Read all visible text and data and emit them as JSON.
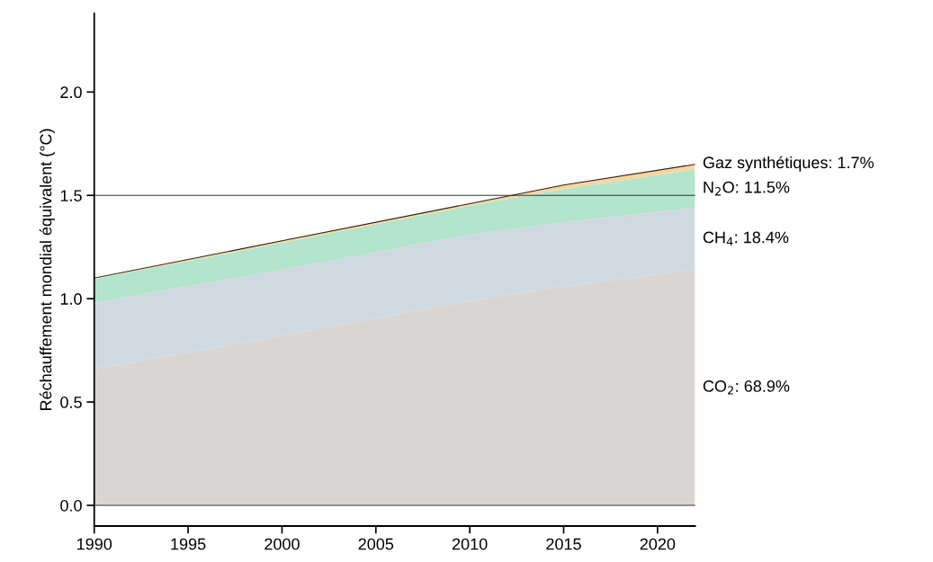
{
  "chart_data": {
    "type": "area",
    "stacked": true,
    "ylabel": "Réchauffement mondial équivalent (°C)",
    "x": [
      1990,
      2000,
      2010,
      2015,
      2022
    ],
    "series": [
      {
        "name": "CO$_{2}$: 68.9%",
        "color": "#d9d5d2",
        "values": [
          0.66,
          0.82,
          0.99,
          1.06,
          1.14
        ]
      },
      {
        "name": "CH$_{4}$: 18.4%",
        "color": "#cfd9e1",
        "values": [
          0.32,
          0.32,
          0.32,
          0.31,
          0.3
        ]
      },
      {
        "name": "N$_{2}$O: 11.5%",
        "color": "#b3e4cc",
        "values": [
          0.115,
          0.13,
          0.14,
          0.16,
          0.185
        ]
      },
      {
        "name": "Gaz synthétiques: 1.7%",
        "color": "#fdd49e",
        "values": [
          0.005,
          0.01,
          0.01,
          0.02,
          0.025
        ]
      }
    ],
    "xlim": [
      1990,
      2022
    ],
    "xticks": [
      1990,
      1995,
      2000,
      2005,
      2010,
      2015,
      2020
    ],
    "ylim": [
      -0.1,
      2.38
    ],
    "yticks": [
      {
        "value": 0,
        "label": "0.0"
      },
      {
        "value": 0.5,
        "label": "0.5"
      },
      {
        "value": 1,
        "label": "1.0"
      },
      {
        "value": 1.5,
        "label": "1.5"
      },
      {
        "value": 2,
        "label": "2.0"
      }
    ],
    "ref_lines": [
      {
        "axis": "y",
        "value": 0,
        "color": "#333333"
      },
      {
        "axis": "y",
        "value": 1.5,
        "color": "#333333"
      }
    ],
    "grid": false,
    "legend": false
  }
}
